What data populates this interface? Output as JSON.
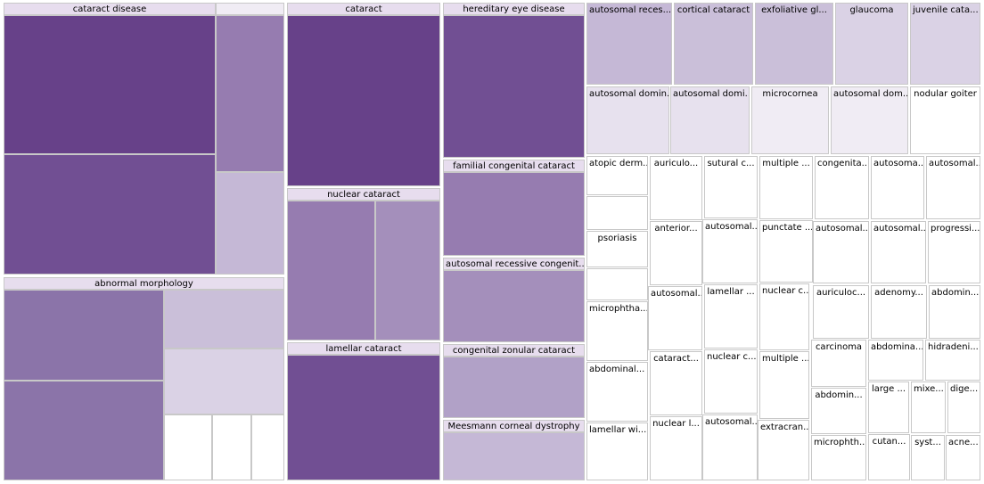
{
  "colors": {
    "c1": "#674189",
    "c2": "#714f93",
    "c3": "#7f62a0",
    "c4": "#8b74a9",
    "c5": "#967cb0",
    "c6": "#a48fbb",
    "c7": "#b1a1c7",
    "c8": "#c5b8d6",
    "c9": "#cabfd9",
    "c10": "#dad2e5",
    "c11": "#e7e1ee",
    "c12": "#f0ecf4",
    "white": "#ffffff",
    "header": "#e7ddee",
    "border": "#c8c8c8"
  },
  "groups": {
    "cataract_disease": "cataract disease",
    "abnormal_morphology": "abnormal morphology",
    "cataract": "cataract",
    "nuclear_cataract": "nuclear cataract",
    "lamellar_cataract": "lamellar cataract",
    "hereditary_eye_disease": "hereditary eye disease",
    "familial_congenital_cataract": "familial congenital cataract",
    "autosomal_recessive_congenital": "autosomal recessive congenit...",
    "congenital_zonular_cataract": "congenital zonular cataract",
    "meesmann_corneal_dystrophy": "Meesmann corneal dystrophy"
  },
  "leaves": {
    "autosomal_recessive": "autosomal reces...",
    "cortical_cataract": "cortical cataract",
    "exfoliative_gl": "exfoliative gl...",
    "glaucoma": "glaucoma",
    "juvenile_cata": "juvenile cata...",
    "autosomal_domin_1": "autosomal domin...",
    "autosomal_domi_2": "autosomal domi...",
    "microcornea": "microcornea",
    "autosomal_dom_3": "autosomal dom...",
    "nodular_goiter": "nodular goiter",
    "atopic_derm": "atopic derm...",
    "auriculo_1": "auriculo...",
    "sutural_c": "sutural c...",
    "multiple_1": "multiple ...",
    "congenita": "congenita...",
    "autosoma_a": "autosoma...",
    "autosomal_b": "autosomal...",
    "psoriasis": "psoriasis",
    "anterior": "anterior...",
    "autosomal_c": "autosomal...",
    "punctate": "punctate ...",
    "autosomal_d": "autosomal...",
    "autosomal_e": "autosomal...",
    "progressi": "progressi...",
    "autosomal_f": "autosomal...",
    "lamellar_2": "lamellar ...",
    "nuclear_c1": "nuclear c...",
    "auriculoc": "auriculoc...",
    "adenomy": "adenomy...",
    "abdomin_1": "abdomin...",
    "microphtha_1": "microphtha...",
    "carcinoma": "carcinoma",
    "abdomina_2": "abdomina...",
    "hidradeni": "hidradeni...",
    "cataract_short": "cataract...",
    "nuclear_c2": "nuclear c...",
    "multiple_2": "multiple ...",
    "abdominal_3": "abdominal...",
    "abdomin_4": "abdomin...",
    "large": "large ...",
    "mixe": "mixe...",
    "dige": "dige...",
    "nuclear_l": "nuclear l...",
    "autosomal_g": "autosomal...",
    "extracran": "extracran...",
    "lamellar_wi": "lamellar wi...",
    "microphth_5": "microphth...",
    "cutan": "cutan...",
    "syst": "syst...",
    "acne": "acne..."
  }
}
